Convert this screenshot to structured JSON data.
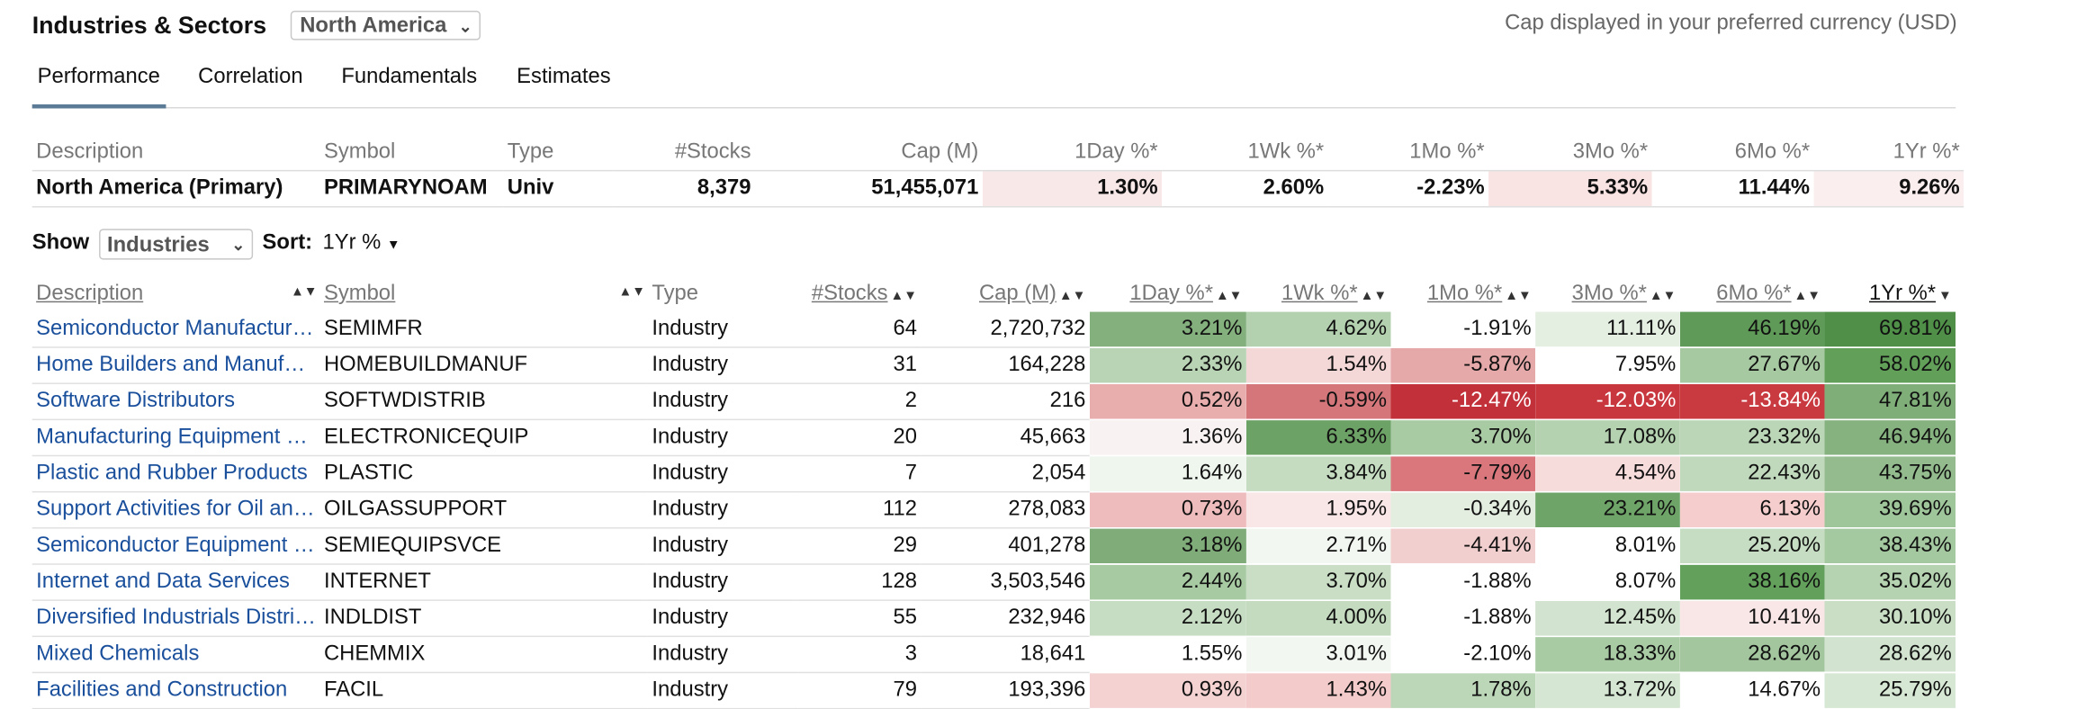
{
  "header": {
    "title": "Industries & Sectors",
    "region": "North America",
    "currency_note": "Cap displayed in your preferred currency (USD)"
  },
  "tabs": [
    {
      "label": "Performance",
      "active": true
    },
    {
      "label": "Correlation",
      "active": false
    },
    {
      "label": "Fundamentals",
      "active": false
    },
    {
      "label": "Estimates",
      "active": false
    }
  ],
  "summary": {
    "headers": [
      "Description",
      "Symbol",
      "Type",
      "#Stocks",
      "Cap (M)",
      "1Day %*",
      "1Wk %*",
      "1Mo %*",
      "3Mo %*",
      "6Mo %*",
      "1Yr %*"
    ],
    "row": {
      "description": "North America (Primary)",
      "symbol": "PRIMARYNOAM",
      "type": "Univ",
      "stocks": "8,379",
      "cap": "51,455,071",
      "pcts": [
        "1.30%",
        "2.60%",
        "-2.23%",
        "5.33%",
        "11.44%",
        "9.26%"
      ],
      "shades": [
        "#f9e8e8",
        "#ffffff",
        "#ffffff",
        "#f9e3e3",
        "#ffffff",
        "#fbeeee"
      ]
    }
  },
  "controls": {
    "show_label": "Show",
    "show_value": "Industries",
    "sort_label": "Sort:",
    "sort_value": "1Yr %"
  },
  "table": {
    "headers": [
      "Description",
      "Symbol",
      "Type",
      "#Stocks",
      "Cap (M)",
      "1Day %*",
      "1Wk %*",
      "1Mo %*",
      "3Mo %*",
      "6Mo %*",
      "1Yr %*"
    ],
    "rows": [
      {
        "description": "Semiconductor Manufacturing",
        "symbol": "SEMIMFR",
        "type": "Industry",
        "stocks": "64",
        "cap": "2,720,732",
        "pcts": [
          "3.21%",
          "4.62%",
          "-1.91%",
          "11.11%",
          "46.19%",
          "69.81%"
        ],
        "shades": [
          "#84b07e",
          "#b3d1af",
          "#ffffff",
          "#e4efe2",
          "#5f9a58",
          "#4f8f48"
        ]
      },
      {
        "description": "Home Builders and Manufacturers",
        "symbol": "HOMEBUILDMANUF",
        "type": "Industry",
        "stocks": "31",
        "cap": "164,228",
        "pcts": [
          "2.33%",
          "1.54%",
          "-5.87%",
          "7.95%",
          "27.67%",
          "58.02%"
        ],
        "shades": [
          "#b9d4b5",
          "#f4d8d8",
          "#e6a9a9",
          "#ffffff",
          "#a7c9a2",
          "#62a05a"
        ]
      },
      {
        "description": "Software Distributors",
        "symbol": "SOFTWDISTRIB",
        "type": "Industry",
        "stocks": "2",
        "cap": "216",
        "pcts": [
          "0.52%",
          "-0.59%",
          "-12.47%",
          "-12.03%",
          "-13.84%",
          "47.81%"
        ],
        "shades": [
          "#e8aeae",
          "#d4767a",
          "#c2303a",
          "#c8363e",
          "#c83a40",
          "#7fae79"
        ]
      },
      {
        "description": "Manufacturing Equipment and Components",
        "symbol": "ELECTRONICEQUIP",
        "type": "Industry",
        "stocks": "20",
        "cap": "45,663",
        "pcts": [
          "1.36%",
          "6.33%",
          "3.70%",
          "17.08%",
          "23.32%",
          "46.94%"
        ],
        "shades": [
          "#f8f2f2",
          "#6da266",
          "#a9cba4",
          "#b5d2b0",
          "#bbd6b7",
          "#86b280"
        ]
      },
      {
        "description": "Plastic and Rubber Products",
        "symbol": "PLASTIC",
        "type": "Industry",
        "stocks": "7",
        "cap": "2,054",
        "pcts": [
          "1.64%",
          "3.84%",
          "-7.79%",
          "4.54%",
          "22.43%",
          "43.75%"
        ],
        "shades": [
          "#eff6ee",
          "#c5dcc1",
          "#d9777c",
          "#f7dcdc",
          "#c0d9bc",
          "#93bb8d"
        ]
      },
      {
        "description": "Support Activities for Oil and Gas",
        "symbol": "OILGASSUPPORT",
        "type": "Industry",
        "stocks": "112",
        "cap": "278,083",
        "pcts": [
          "0.73%",
          "1.95%",
          "-0.34%",
          "23.21%",
          "6.13%",
          "39.69%"
        ],
        "shades": [
          "#eebcbc",
          "#f9e6e6",
          "#e3eee1",
          "#6fa468",
          "#f5cdcd",
          "#9fc59a"
        ]
      },
      {
        "description": "Semiconductor Equipment and Services",
        "symbol": "SEMIEQUIPSVCE",
        "type": "Industry",
        "stocks": "29",
        "cap": "401,278",
        "pcts": [
          "3.18%",
          "2.71%",
          "-4.41%",
          "8.01%",
          "25.20%",
          "38.43%"
        ],
        "shades": [
          "#7fac79",
          "#f2f7f1",
          "#f2cfcf",
          "#ffffff",
          "#c7ddc3",
          "#a4c89f"
        ]
      },
      {
        "description": "Internet and Data Services",
        "symbol": "INTERNET",
        "type": "Industry",
        "stocks": "128",
        "cap": "3,503,546",
        "pcts": [
          "2.44%",
          "3.70%",
          "-1.88%",
          "8.07%",
          "38.16%",
          "35.02%"
        ],
        "shades": [
          "#a8caa3",
          "#c9dec5",
          "#ffffff",
          "#ffffff",
          "#63a05b",
          "#b6d3b1"
        ]
      },
      {
        "description": "Diversified Industrials Distributors",
        "symbol": "INDLDIST",
        "type": "Industry",
        "stocks": "55",
        "cap": "232,946",
        "pcts": [
          "2.12%",
          "4.00%",
          "-1.88%",
          "12.45%",
          "10.41%",
          "30.10%"
        ],
        "shades": [
          "#c7ddc3",
          "#c4dbc0",
          "#ffffff",
          "#d2e4cf",
          "#f9e6e6",
          "#c9dec5"
        ]
      },
      {
        "description": "Mixed Chemicals",
        "symbol": "CHEMMIX",
        "type": "Industry",
        "stocks": "3",
        "cap": "18,641",
        "pcts": [
          "1.55%",
          "3.01%",
          "-2.10%",
          "18.33%",
          "28.62%",
          "28.62%"
        ],
        "shades": [
          "#ffffff",
          "#f2f7f1",
          "#ffffff",
          "#a9cba4",
          "#a3c69e",
          "#d2e4cf"
        ]
      },
      {
        "description": "Facilities and Construction",
        "symbol": "FACIL",
        "type": "Industry",
        "stocks": "79",
        "cap": "193,396",
        "pcts": [
          "0.93%",
          "1.43%",
          "1.78%",
          "13.72%",
          "14.67%",
          "25.79%"
        ],
        "shades": [
          "#f4d2d2",
          "#f4cbcb",
          "#bcd6b8",
          "#d5e6d2",
          "#ffffff",
          "#d6e7d3"
        ]
      }
    ]
  }
}
